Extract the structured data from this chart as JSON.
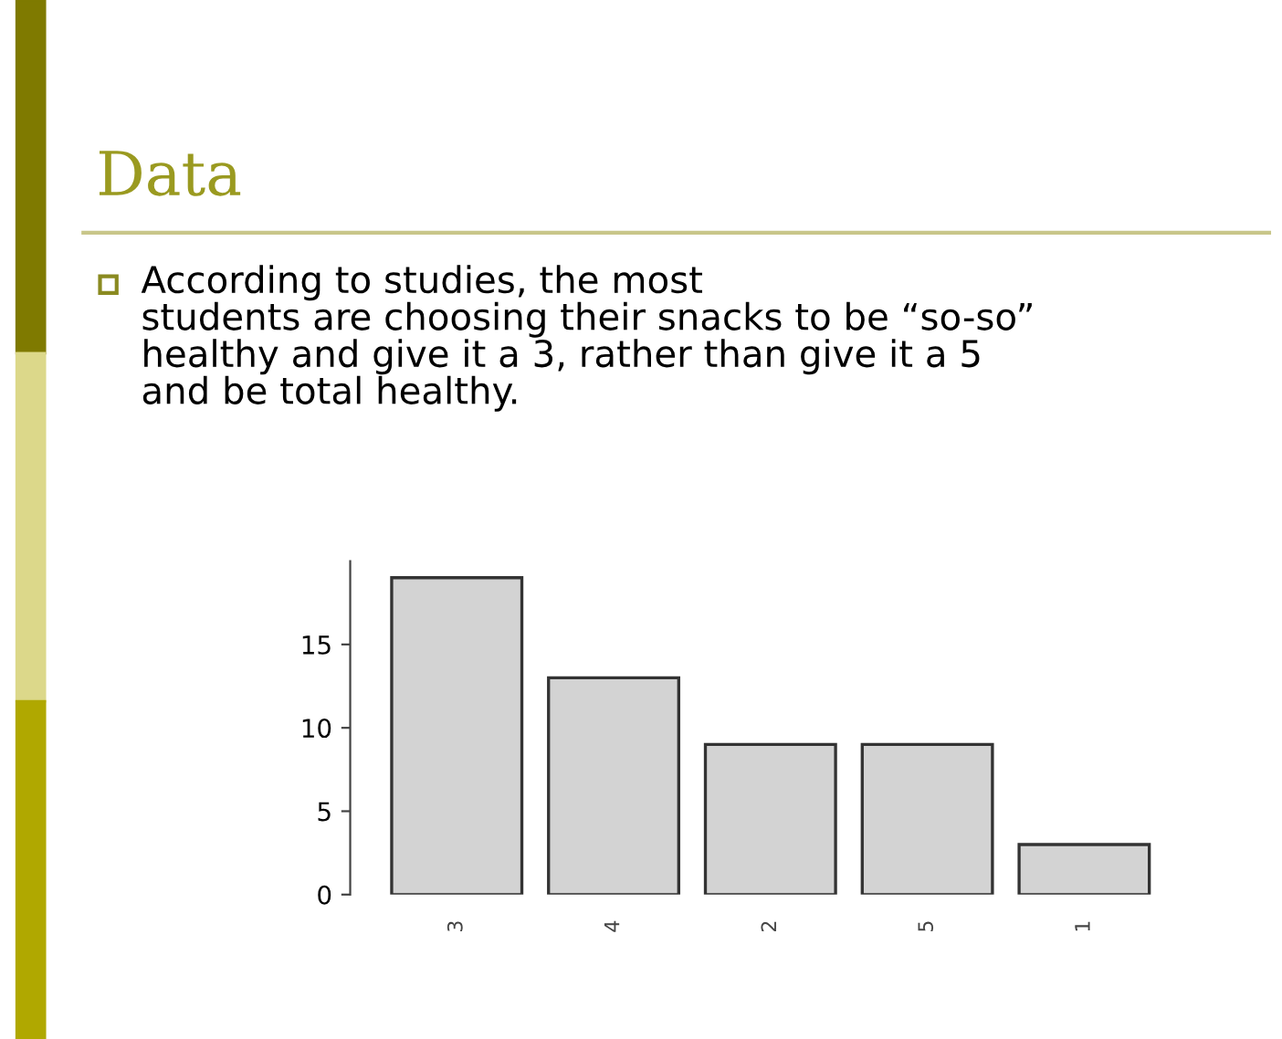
{
  "chart_data": {
    "type": "bar",
    "title": "Data",
    "subtitle": "According to studies, the most\nstudents are choosing their snacks to be “so-so”\nhealthy and give it a 3, rather than give it a 5\nand be total healthy.",
    "categories": [
      "3",
      "4",
      "2",
      "5",
      "1"
    ],
    "values": [
      19,
      13,
      9,
      9,
      3
    ],
    "color": "#d3d3d3",
    "ylim": [
      0,
      20
    ],
    "yticks": [
      0,
      5,
      10,
      15
    ],
    "grid": false,
    "legend": false
  }
}
